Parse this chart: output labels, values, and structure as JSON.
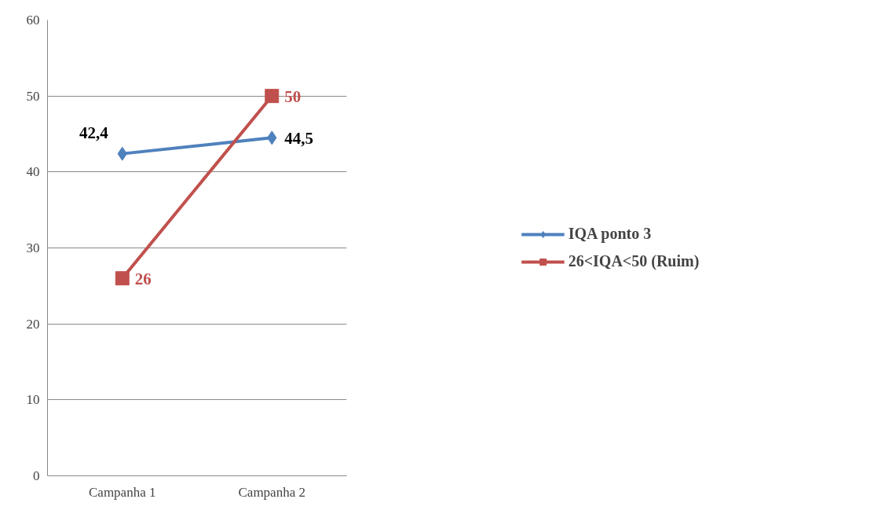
{
  "chart_data": {
    "type": "line",
    "categories": [
      "Campanha 1",
      "Campanha 2"
    ],
    "series": [
      {
        "name": "IQA ponto 3",
        "color": "#4f81bd",
        "marker": "diamond",
        "values": [
          42.4,
          44.5
        ],
        "value_labels": [
          "42,4",
          "44,5"
        ]
      },
      {
        "name": "26<IQA<50 (Ruim)",
        "color": "#c0504d",
        "marker": "square",
        "values": [
          26,
          50
        ],
        "value_labels": [
          "26",
          "50"
        ]
      }
    ],
    "ylim": [
      0,
      60
    ],
    "yticks": [
      0,
      10,
      20,
      30,
      40,
      50,
      60
    ],
    "grid": "y",
    "legend": "right"
  }
}
